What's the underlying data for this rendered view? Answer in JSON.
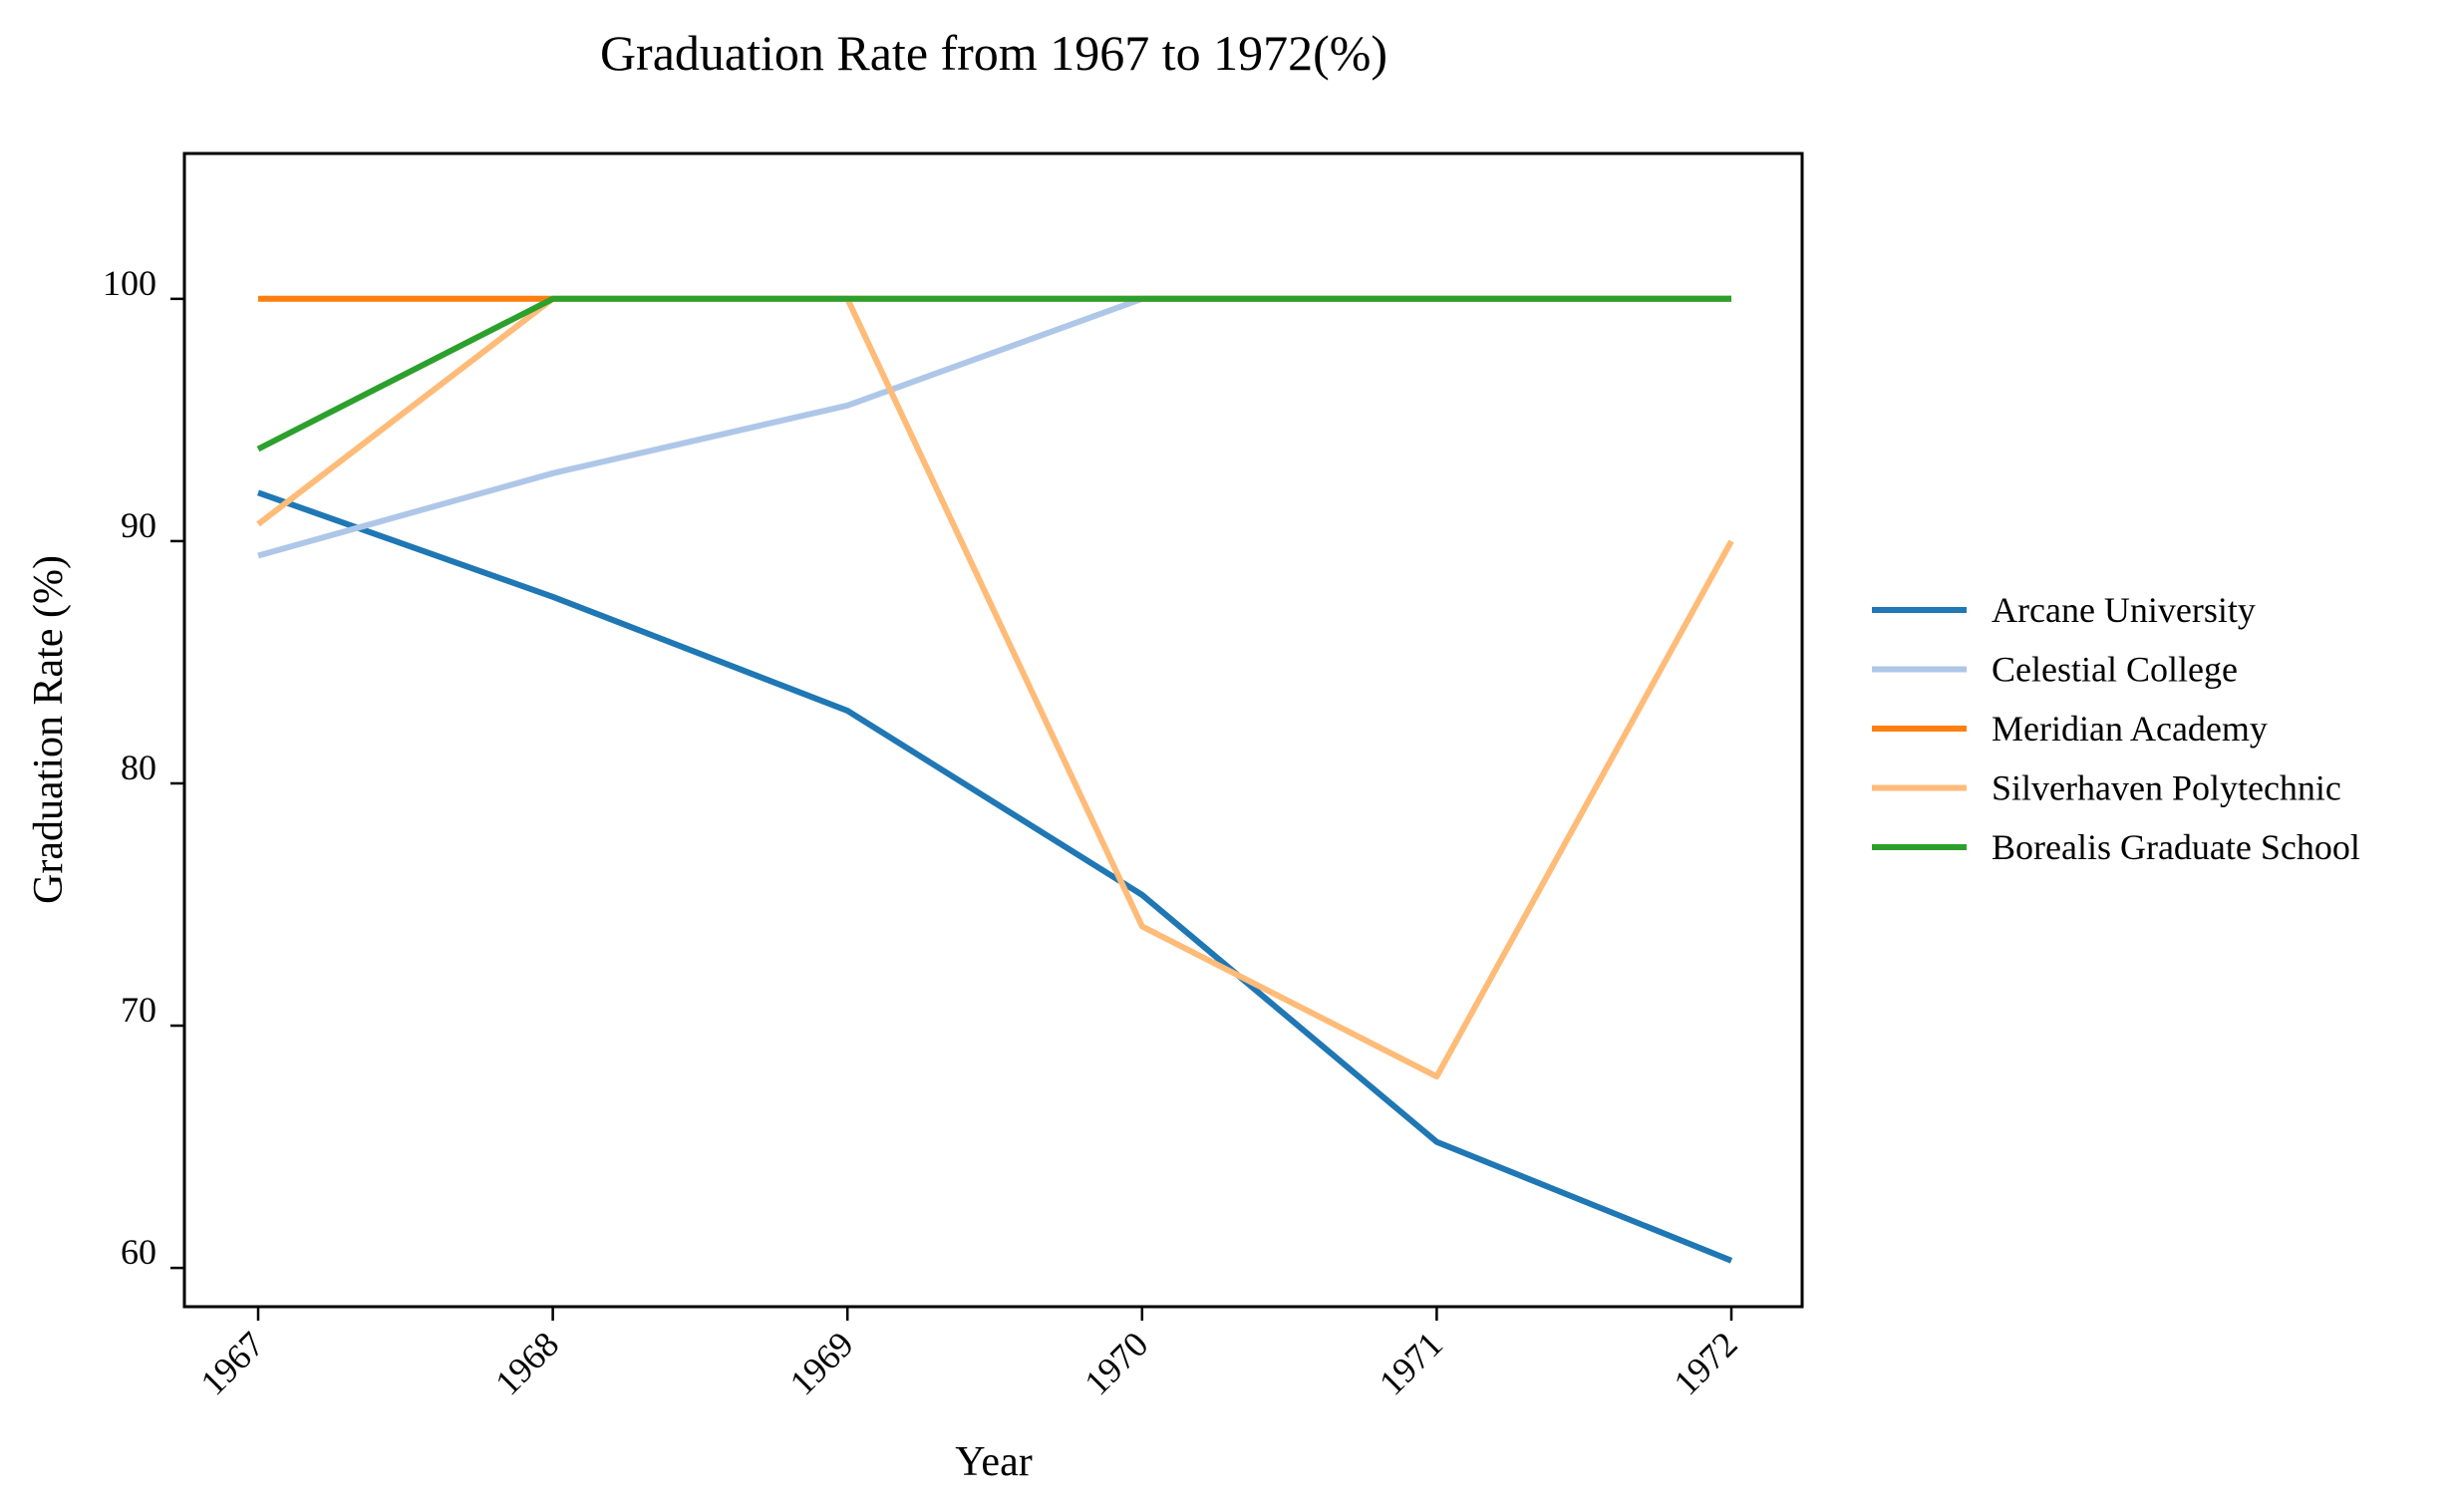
{
  "chart_data": {
    "type": "line",
    "title": "Graduation Rate from 1967 to 1972(%)",
    "xlabel": "Year",
    "ylabel": "Graduation Rate (%)",
    "x": [
      "1967",
      "1968",
      "1969",
      "1970",
      "1971",
      "1972"
    ],
    "yticks": [
      60,
      70,
      80,
      90,
      100
    ],
    "ylim": [
      58.4,
      106
    ],
    "grid": false,
    "legend": "right",
    "series": [
      {
        "name": "Arcane University",
        "color": "#1f77b4",
        "values": [
          92.0,
          87.7,
          83.0,
          75.4,
          65.2,
          60.3
        ]
      },
      {
        "name": "Celestial College",
        "color": "#aec7e8",
        "values": [
          89.4,
          92.8,
          95.6,
          100,
          100,
          100
        ]
      },
      {
        "name": "Meridian Academy",
        "color": "#ff7f0e",
        "values": [
          100,
          100,
          100,
          100,
          100,
          100
        ]
      },
      {
        "name": "Silverhaven Polytechnic",
        "color": "#ffbb78",
        "values": [
          90.7,
          100,
          100,
          74.1,
          67.9,
          90.0
        ]
      },
      {
        "name": "Borealis Graduate School",
        "color": "#2ca02c",
        "values": [
          93.8,
          100,
          100,
          100,
          100,
          100
        ]
      }
    ]
  }
}
